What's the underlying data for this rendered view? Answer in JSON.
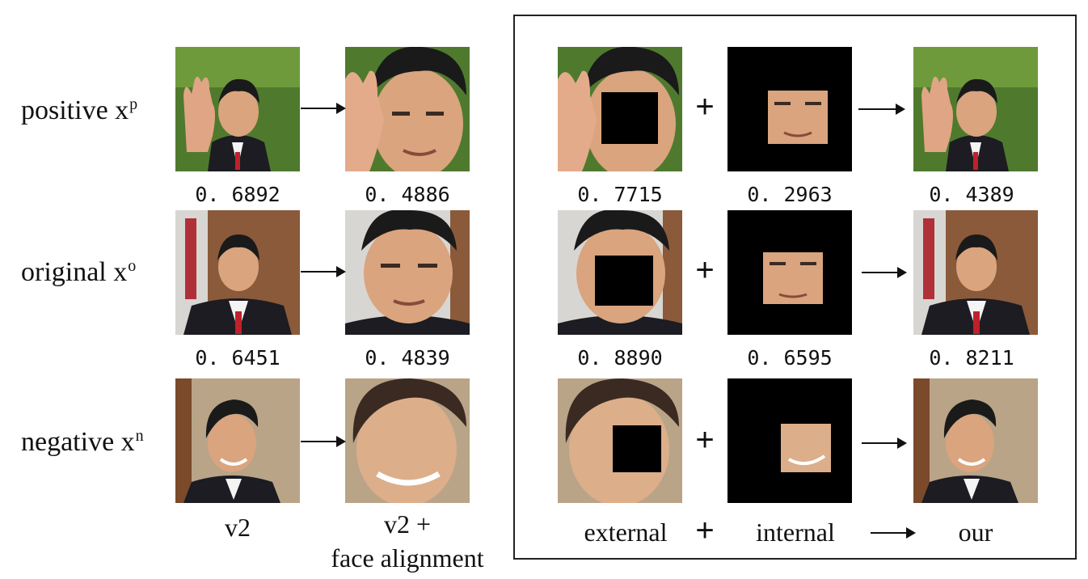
{
  "rows": [
    {
      "label": "positive x",
      "sup": "p"
    },
    {
      "label": "original x",
      "sup": "o"
    },
    {
      "label": "negative x",
      "sup": "n"
    }
  ],
  "left_scores": [
    [
      "0. 6892",
      "0. 4886"
    ],
    [
      "0. 6451",
      "0. 4839"
    ]
  ],
  "right_scores": [
    [
      "0. 7715",
      "0. 2963",
      "0. 4389"
    ],
    [
      "0. 8890",
      "0. 6595",
      "0. 8211"
    ]
  ],
  "left_columns": {
    "v2": "v2",
    "v2_align_1": "v2 +",
    "v2_align_2": "face alignment"
  },
  "right_columns": {
    "external": "external",
    "internal": "internal",
    "our": "our",
    "plus": "+"
  },
  "plus_symbol": "+",
  "colors": {
    "bg_green": "#4f7a2e",
    "bg_brown": "#8a5a3a",
    "bg_beige": "#b9a488",
    "skin": "#d9a47e",
    "hair": "#1a1a1a",
    "suit": "#1c1c22",
    "tie": "#c0202c",
    "black": "#000000"
  }
}
